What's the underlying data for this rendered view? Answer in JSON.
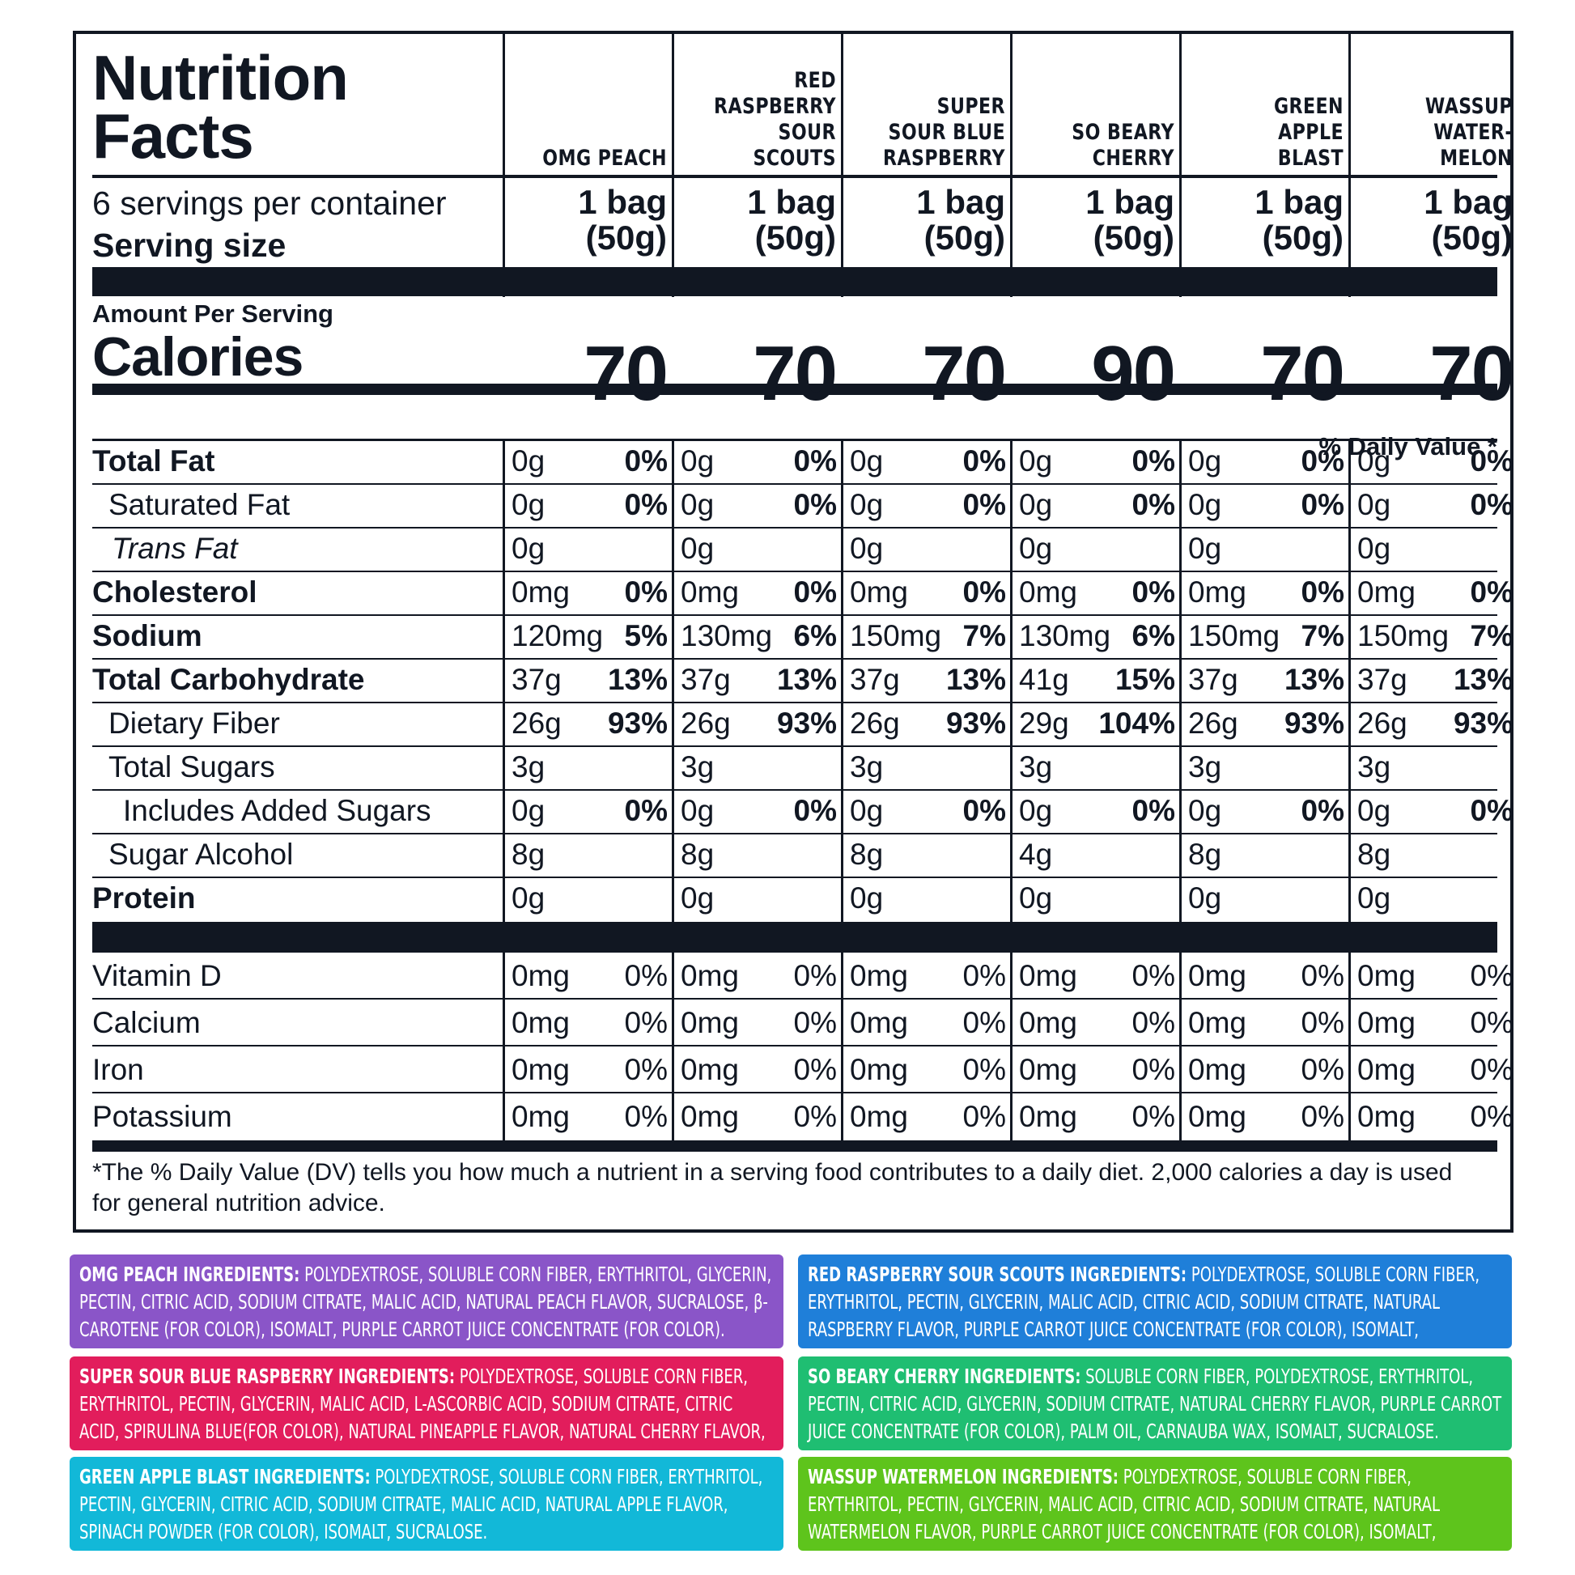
{
  "title_line1": "Nutrition",
  "title_line2": "Facts",
  "servings_per_container": "6 servings per container",
  "serving_size_label": "Serving size",
  "amount_per_serving": "Amount Per Serving",
  "calories_label": "Calories",
  "daily_value_header": "% Daily Value *",
  "columns": [
    {
      "flavor": "OMG PEACH",
      "serving_amount": "1 bag",
      "serving_weight": "(50g)",
      "calories": "70"
    },
    {
      "flavor": "RED RASPBERRY SOUR SCOUTS",
      "serving_amount": "1 bag",
      "serving_weight": "(50g)",
      "calories": "70"
    },
    {
      "flavor": "SUPER SOUR BLUE RASPBERRY",
      "serving_amount": "1 bag",
      "serving_weight": "(50g)",
      "calories": "70"
    },
    {
      "flavor": "SO BEARY CHERRY",
      "serving_amount": "1 bag",
      "serving_weight": "(50g)",
      "calories": "90"
    },
    {
      "flavor": "GREEN APPLE BLAST",
      "serving_amount": "1 bag",
      "serving_weight": "(50g)",
      "calories": "70"
    },
    {
      "flavor": "WASSUP WATER- MELON",
      "serving_amount": "1 bag",
      "serving_weight": "(50g)",
      "calories": "70"
    }
  ],
  "nutrients": [
    {
      "label": "Total Fat",
      "values": [
        [
          "0g",
          "0%"
        ],
        [
          "0g",
          "0%"
        ],
        [
          "0g",
          "0%"
        ],
        [
          "0g",
          "0%"
        ],
        [
          "0g",
          "0%"
        ],
        [
          "0g",
          "0%"
        ]
      ]
    },
    {
      "label": "Saturated Fat",
      "values": [
        [
          "0g",
          "0%"
        ],
        [
          "0g",
          "0%"
        ],
        [
          "0g",
          "0%"
        ],
        [
          "0g",
          "0%"
        ],
        [
          "0g",
          "0%"
        ],
        [
          "0g",
          "0%"
        ]
      ]
    },
    {
      "label": "Trans Fat",
      "values": [
        [
          "0g",
          ""
        ],
        [
          "0g",
          ""
        ],
        [
          "0g",
          ""
        ],
        [
          "0g",
          ""
        ],
        [
          "0g",
          ""
        ],
        [
          "0g",
          ""
        ]
      ]
    },
    {
      "label": "Cholesterol",
      "values": [
        [
          "0mg",
          "0%"
        ],
        [
          "0mg",
          "0%"
        ],
        [
          "0mg",
          "0%"
        ],
        [
          "0mg",
          "0%"
        ],
        [
          "0mg",
          "0%"
        ],
        [
          "0mg",
          "0%"
        ]
      ]
    },
    {
      "label": "Sodium",
      "values": [
        [
          "120mg",
          "5%"
        ],
        [
          "130mg",
          "6%"
        ],
        [
          "150mg",
          "7%"
        ],
        [
          "130mg",
          "6%"
        ],
        [
          "150mg",
          "7%"
        ],
        [
          "150mg",
          "7%"
        ]
      ]
    },
    {
      "label": "Total Carbohydrate",
      "values": [
        [
          "37g",
          "13%"
        ],
        [
          "37g",
          "13%"
        ],
        [
          "37g",
          "13%"
        ],
        [
          "41g",
          "15%"
        ],
        [
          "37g",
          "13%"
        ],
        [
          "37g",
          "13%"
        ]
      ]
    },
    {
      "label": "Dietary Fiber",
      "values": [
        [
          "26g",
          "93%"
        ],
        [
          "26g",
          "93%"
        ],
        [
          "26g",
          "93%"
        ],
        [
          "29g",
          "104%"
        ],
        [
          "26g",
          "93%"
        ],
        [
          "26g",
          "93%"
        ]
      ]
    },
    {
      "label": "Total Sugars",
      "values": [
        [
          "3g",
          ""
        ],
        [
          "3g",
          ""
        ],
        [
          "3g",
          ""
        ],
        [
          "3g",
          ""
        ],
        [
          "3g",
          ""
        ],
        [
          "3g",
          ""
        ]
      ]
    },
    {
      "label": "Includes Added Sugars",
      "values": [
        [
          "0g",
          "0%"
        ],
        [
          "0g",
          "0%"
        ],
        [
          "0g",
          "0%"
        ],
        [
          "0g",
          "0%"
        ],
        [
          "0g",
          "0%"
        ],
        [
          "0g",
          "0%"
        ]
      ]
    },
    {
      "label": "Sugar Alcohol",
      "values": [
        [
          "8g",
          ""
        ],
        [
          "8g",
          ""
        ],
        [
          "8g",
          ""
        ],
        [
          "4g",
          ""
        ],
        [
          "8g",
          ""
        ],
        [
          "8g",
          ""
        ]
      ]
    },
    {
      "label": "Protein",
      "values": [
        [
          "0g",
          ""
        ],
        [
          "0g",
          ""
        ],
        [
          "0g",
          ""
        ],
        [
          "0g",
          ""
        ],
        [
          "0g",
          ""
        ],
        [
          "0g",
          ""
        ]
      ]
    }
  ],
  "vitamins": [
    {
      "label": "Vitamin D",
      "values": [
        [
          "0mg",
          "0%"
        ],
        [
          "0mg",
          "0%"
        ],
        [
          "0mg",
          "0%"
        ],
        [
          "0mg",
          "0%"
        ],
        [
          "0mg",
          "0%"
        ],
        [
          "0mg",
          "0%"
        ]
      ]
    },
    {
      "label": "Calcium",
      "values": [
        [
          "0mg",
          "0%"
        ],
        [
          "0mg",
          "0%"
        ],
        [
          "0mg",
          "0%"
        ],
        [
          "0mg",
          "0%"
        ],
        [
          "0mg",
          "0%"
        ],
        [
          "0mg",
          "0%"
        ]
      ]
    },
    {
      "label": "Iron",
      "values": [
        [
          "0mg",
          "0%"
        ],
        [
          "0mg",
          "0%"
        ],
        [
          "0mg",
          "0%"
        ],
        [
          "0mg",
          "0%"
        ],
        [
          "0mg",
          "0%"
        ],
        [
          "0mg",
          "0%"
        ]
      ]
    },
    {
      "label": "Potassium",
      "values": [
        [
          "0mg",
          "0%"
        ],
        [
          "0mg",
          "0%"
        ],
        [
          "0mg",
          "0%"
        ],
        [
          "0mg",
          "0%"
        ],
        [
          "0mg",
          "0%"
        ],
        [
          "0mg",
          "0%"
        ]
      ]
    }
  ],
  "footnote": "*The % Daily Value (DV) tells you how much a nutrient in a serving food contributes to a daily diet. 2,000 calories a day is used for general nutrition advice.",
  "ingredients": [
    {
      "name": "OMG PEACH INGREDIENTS:",
      "text": " POLYDEXTROSE, SOLUBLE CORN FIBER, ERYTHRITOL, GLYCERIN, PECTIN, CITRIC ACID, SODIUM CITRATE, MALIC ACID, NATURAL PEACH FLAVOR, SUCRALOSE, β-CAROTENE (FOR COLOR), ISOMALT, PURPLE CARROT JUICE CONCENTRATE (FOR COLOR).",
      "color": "#8a55c8"
    },
    {
      "name": "RED RASPBERRY SOUR SCOUTS INGREDIENTS:",
      "text": " POLYDEXTROSE, SOLUBLE CORN FIBER, ERYTHRITOL, PECTIN, GLYCERIN, MALIC ACID, CITRIC ACID, SODIUM CITRATE, NATURAL RASPBERRY FLAVOR, PURPLE CARROT JUICE CONCENTRATE (FOR COLOR), ISOMALT, SUCRALOSE.",
      "color": "#1f7fd9"
    },
    {
      "name": "SUPER SOUR BLUE RASPBERRY INGREDIENTS:",
      "text": " POLYDEXTROSE, SOLUBLE CORN FIBER, ERYTHRITOL, PECTIN, GLYCERIN, MALIC ACID, L-ASCORBIC ACID, SODIUM CITRATE, CITRIC ACID, SPIRULINA BLUE(FOR COLOR), NATURAL PINEAPPLE FLAVOR, NATURAL CHERRY FLAVOR, NATURAL BANANA FLAVOR, ISOMALT, SUCRALOSE.",
      "color": "#e21d5c"
    },
    {
      "name": "SO BEARY CHERRY INGREDIENTS:",
      "text": " SOLUBLE CORN FIBER, POLYDEXTROSE, ERYTHRITOL, PECTIN, CITRIC ACID, GLYCERIN, SODIUM CITRATE, NATURAL CHERRY FLAVOR, PURPLE CARROT JUICE CONCENTRATE (FOR COLOR), PALM OIL, CARNAUBA WAX, ISOMALT, SUCRALOSE.",
      "color": "#1fbe72"
    },
    {
      "name": "GREEN APPLE BLAST INGREDIENTS:",
      "text": " POLYDEXTROSE, SOLUBLE CORN FIBER, ERYTHRITOL, PECTIN, GLYCERIN, CITRIC ACID, SODIUM CITRATE, MALIC ACID, NATURAL APPLE FLAVOR, SPINACH POWDER (FOR COLOR), ISOMALT, SUCRALOSE.",
      "color": "#12b8d8"
    },
    {
      "name": "WASSUP WATERMELON INGREDIENTS:",
      "text": " POLYDEXTROSE, SOLUBLE CORN FIBER, ERYTHRITOL, PECTIN, GLYCERIN, MALIC ACID, CITRIC ACID, SODIUM CITRATE, NATURAL WATERMELON FLAVOR, PURPLE CARROT JUICE CONCENTRATE (FOR COLOR), ISOMALT, SUCRALOSE.",
      "color": "#5ec41c"
    }
  ]
}
